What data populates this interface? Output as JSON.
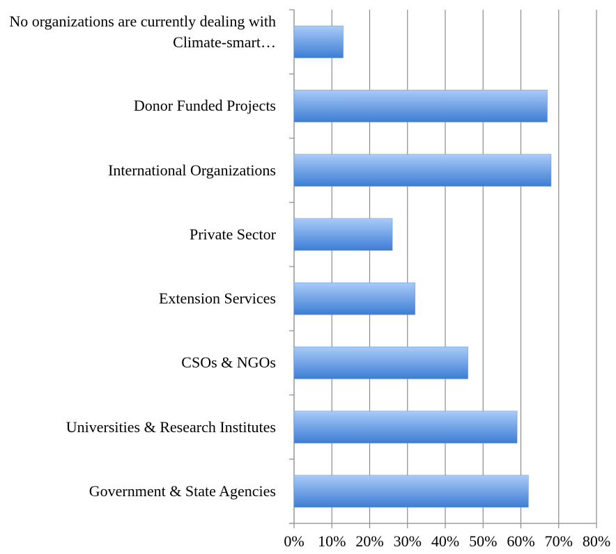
{
  "chart_data": {
    "type": "barh",
    "categories": [
      "No organizations are currently dealing with Climate-smart…",
      "Donor Funded Projects",
      "International Organizations",
      "Private Sector",
      "Extension Services",
      "CSOs & NGOs",
      "Universities & Research Institutes",
      "Government & State Agencies"
    ],
    "values": [
      13,
      67,
      68,
      26,
      32,
      46,
      59,
      62
    ],
    "color": "#5b93e0",
    "xlim": [
      0,
      80
    ],
    "xticks": [
      {
        "value": 0,
        "label": "0%"
      },
      {
        "value": 10,
        "label": "10%"
      },
      {
        "value": 20,
        "label": "20%"
      },
      {
        "value": 30,
        "label": "30%"
      },
      {
        "value": 40,
        "label": "40%"
      },
      {
        "value": 50,
        "label": "50%"
      },
      {
        "value": 60,
        "label": "60%"
      },
      {
        "value": 70,
        "label": "70%"
      },
      {
        "value": 80,
        "label": "80%"
      }
    ],
    "grid": true
  }
}
